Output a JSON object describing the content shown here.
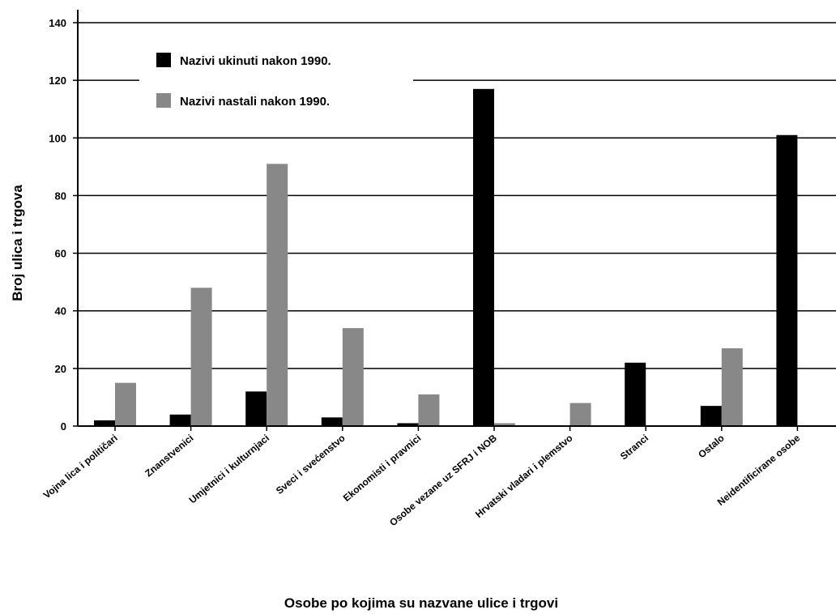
{
  "chart_data": {
    "type": "bar",
    "xlabel": "Osobe po kojima su nazvane ulice i trgovi",
    "ylabel": "Broj ulica i trgova",
    "ylim": [
      0,
      140
    ],
    "yticks": [
      0,
      20,
      40,
      60,
      80,
      100,
      120,
      140
    ],
    "grid": true,
    "legend_position": "top-left",
    "categories": [
      "Vojna lica i političari",
      "Znanstvenici",
      "Umjetnici i kulturnjaci",
      "Sveci i svećenstvo",
      "Ekonomisti i pravnici",
      "Osobe vezane uz SFRJ i NOB",
      "Hrvatski vladari i plemstvo",
      "Stranci",
      "Ostalo",
      "Neidentificirane osobe"
    ],
    "series": [
      {
        "name": "Nazivi ukinuti nakon 1990.",
        "color": "#000000",
        "values": [
          2,
          4,
          12,
          3,
          1,
          117,
          0,
          22,
          7,
          101
        ]
      },
      {
        "name": "Nazivi nastali nakon 1990.",
        "color": "#888888",
        "values": [
          15,
          48,
          91,
          34,
          11,
          1,
          8,
          0,
          27,
          0
        ]
      }
    ]
  }
}
